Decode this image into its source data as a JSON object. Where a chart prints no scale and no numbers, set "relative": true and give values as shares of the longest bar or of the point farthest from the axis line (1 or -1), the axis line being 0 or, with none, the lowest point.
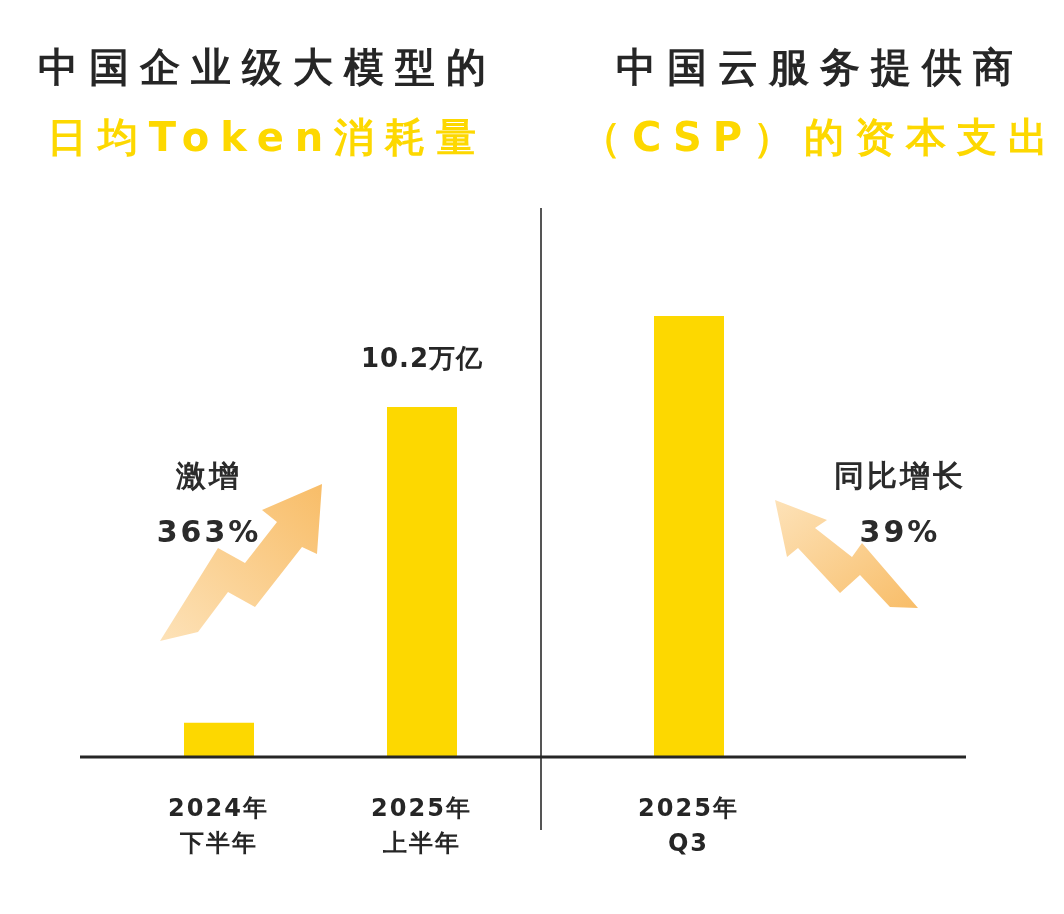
{
  "chart_data": [
    {
      "type": "bar",
      "title": "中国企业级大模型的",
      "subtitle": "日均Token消耗量",
      "categories": [
        "2024年下半年",
        "2025年上半年"
      ],
      "values": [
        1.0,
        10.2
      ],
      "value_labels": [
        null,
        "10.2万亿"
      ],
      "color": "#fdd800",
      "annotations": [
        "激增",
        "363%"
      ]
    },
    {
      "type": "bar",
      "title": "中国云服务提供商",
      "subtitle": "（CSP）的资本支出",
      "categories": [
        "2025年Q3"
      ],
      "values": [
        1
      ],
      "relative": true,
      "color": "#fdd800",
      "annotations": [
        "同比增长",
        "39%"
      ]
    }
  ]
}
